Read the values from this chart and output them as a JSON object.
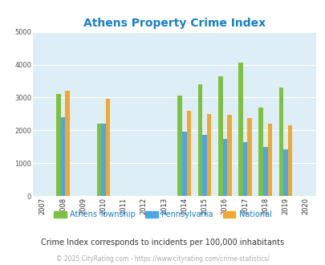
{
  "title": "Athens Property Crime Index",
  "subtitle": "Crime Index corresponds to incidents per 100,000 inhabitants",
  "footer": "© 2025 CityRating.com - https://www.cityrating.com/crime-statistics/",
  "years": [
    2007,
    2008,
    2009,
    2010,
    2011,
    2012,
    2013,
    2014,
    2015,
    2016,
    2017,
    2018,
    2019,
    2020
  ],
  "data_years": [
    "2008",
    "2010",
    "2014",
    "2015",
    "2016",
    "2017",
    "2018",
    "2019"
  ],
  "athens": [
    3100,
    2200,
    3050,
    3400,
    3650,
    4050,
    2700,
    3300
  ],
  "pennsylvania": [
    2400,
    2200,
    1950,
    1850,
    1750,
    1650,
    1500,
    1425
  ],
  "national": [
    3200,
    2950,
    2600,
    2500,
    2475,
    2375,
    2200,
    2150
  ],
  "color_athens": "#7dc142",
  "color_pa": "#4da6e8",
  "color_national": "#f0a830",
  "ylim": [
    0,
    5000
  ],
  "yticks": [
    0,
    1000,
    2000,
    3000,
    4000,
    5000
  ],
  "bg_color": "#ddeef6",
  "title_color": "#1a7fc4",
  "bar_width": 0.22,
  "title_fontsize": 10,
  "subtitle_fontsize": 7,
  "footer_fontsize": 5.5,
  "tick_fontsize": 6,
  "legend_fontsize": 7
}
